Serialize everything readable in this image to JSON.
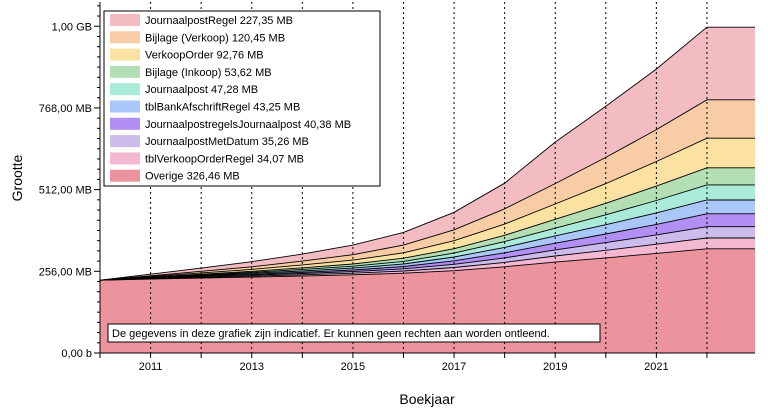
{
  "chart_data": {
    "type": "area",
    "stacked": true,
    "title": "",
    "xlabel": "Boekjaar",
    "ylabel": "Grootte",
    "xlim": [
      2010,
      2022.95
    ],
    "ylim": [
      0,
      1100
    ],
    "x_ticks": [
      "2011",
      "2013",
      "2015",
      "2017",
      "2019",
      "2021"
    ],
    "x_tick_values": [
      2011,
      2013,
      2015,
      2017,
      2019,
      2021
    ],
    "y_ticks": [
      "0,00 b",
      "256,00 MB",
      "512,00 MB",
      "768,00 MB",
      "1,00 GB"
    ],
    "y_tick_values": [
      0,
      256,
      512,
      768,
      1024
    ],
    "x": [
      2010,
      2011,
      2012,
      2013,
      2014,
      2015,
      2016,
      2017,
      2018,
      2019,
      2020,
      2021,
      2022,
      2022.95
    ],
    "series": [
      {
        "name": "Overige 326,46 MB",
        "color": "#ec949e",
        "values": [
          228,
          232,
          235,
          238,
          241,
          245,
          250,
          258,
          270,
          285,
          298,
          312,
          326.46,
          326.46
        ]
      },
      {
        "name": "tblVerkoopOrderRegel 34,07 MB",
        "color": "#f4b8d2",
        "values": [
          0,
          1,
          2,
          3,
          4,
          5,
          7,
          10,
          14,
          19,
          24,
          29,
          34.07,
          34.07
        ]
      },
      {
        "name": "JournaalpostMetDatum 35,26 MB",
        "color": "#cbbcec",
        "values": [
          0,
          1,
          2,
          3,
          4,
          5,
          7,
          10,
          14,
          19,
          24,
          29,
          35.26,
          35.26
        ]
      },
      {
        "name": "JournaalpostregelsJournaalpost 40,38 MB",
        "color": "#b28ff4",
        "values": [
          0,
          1,
          2,
          3,
          4,
          5,
          7,
          11,
          16,
          21,
          27,
          33,
          40.38,
          40.38
        ]
      },
      {
        "name": "tblBankAfschriftRegel 43,25 MB",
        "color": "#a9c7f8",
        "values": [
          0,
          1,
          2,
          3,
          4,
          6,
          8,
          12,
          17,
          23,
          29,
          36,
          43.25,
          43.25
        ]
      },
      {
        "name": "Journaalpost 47,28 MB",
        "color": "#a9ead9",
        "values": [
          0,
          1,
          2,
          3,
          5,
          6,
          8,
          12,
          18,
          24,
          31,
          39,
          47.28,
          47.28
        ]
      },
      {
        "name": "Bijlage (Inkoop) 53,62 MB",
        "color": "#b4dfb4",
        "values": [
          0,
          1,
          2,
          3,
          5,
          7,
          10,
          14,
          20,
          28,
          36,
          45,
          53.62,
          53.62
        ]
      },
      {
        "name": "VerkoopOrder 92,76 MB",
        "color": "#fbe2a3",
        "values": [
          0,
          2,
          4,
          6,
          9,
          12,
          17,
          25,
          35,
          48,
          62,
          77,
          92.76,
          92.76
        ]
      },
      {
        "name": "Bijlage (Verkoop) 120,45 MB",
        "color": "#f8cda5",
        "values": [
          0,
          2,
          5,
          8,
          12,
          17,
          24,
          34,
          48,
          64,
          82,
          100,
          120.45,
          120.45
        ]
      },
      {
        "name": "JournaalpostRegel 227,35 MB",
        "color": "#f3bcc3",
        "values": [
          0,
          5,
          10,
          16,
          22,
          30,
          40,
          55,
          80,
          130,
          160,
          190,
          227.35,
          227.35
        ]
      }
    ],
    "dashed_vertical_lines": [
      2011,
      2012,
      2013,
      2014,
      2015,
      2016,
      2017,
      2018,
      2019,
      2020,
      2021,
      2022
    ],
    "annotation": "De gegevens in deze grafiek zijn indicatief. Er kunnen geen rechten aan worden ontleend.",
    "legend_position": "top-left",
    "grid": false
  }
}
